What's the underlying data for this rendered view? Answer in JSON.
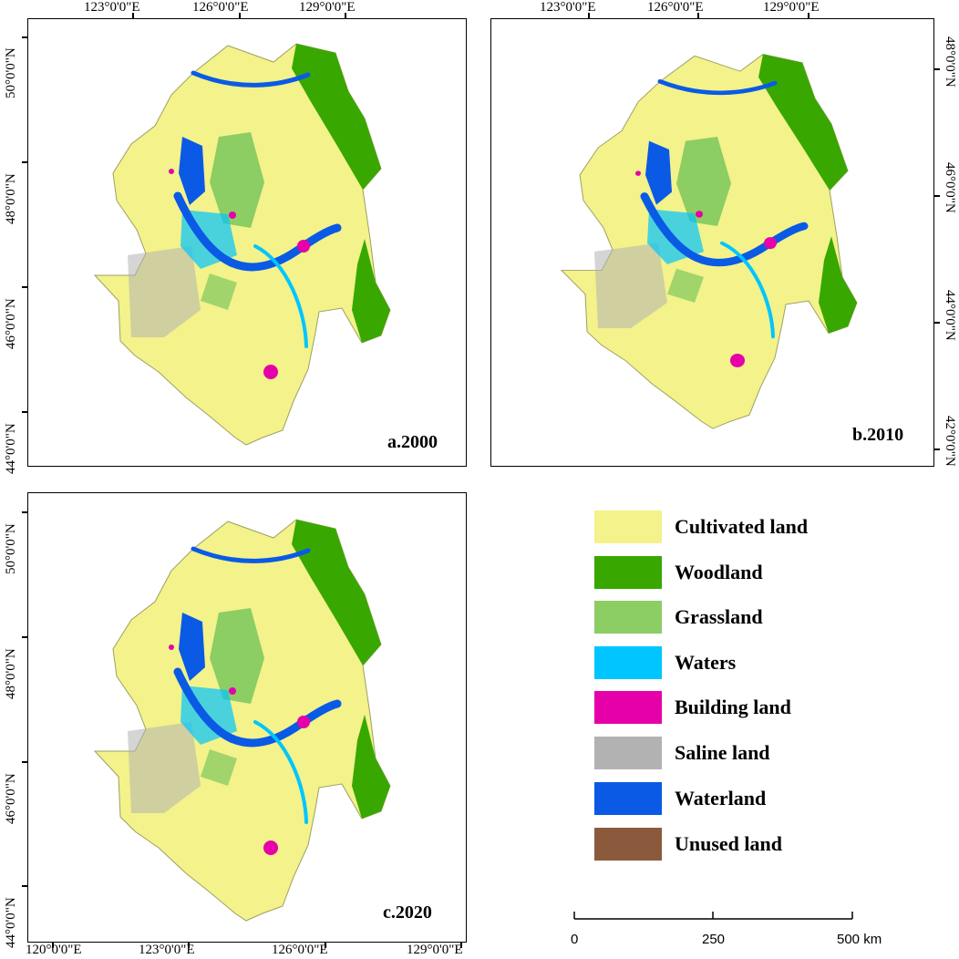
{
  "panels": [
    {
      "id": "a",
      "title": "a.2000",
      "top_labels": [
        "123°0'0\"E",
        "126°0'0\"E",
        "129°0'0\"E"
      ],
      "left_labels": [
        "50°0'0\"N",
        "48°0'0\"N",
        "46°0'0\"N",
        "44°0'0\"N"
      ]
    },
    {
      "id": "b",
      "title": "b.2010",
      "top_labels": [
        "123°0'0\"E",
        "126°0'0\"E",
        "129°0'0\"E"
      ],
      "right_labels": [
        "48°0'0\"N",
        "46°0'0\"N",
        "44°0'0\"N",
        "42°0'0\"N"
      ]
    },
    {
      "id": "c",
      "title": "c.2020",
      "left_labels": [
        "50°0'0\"N",
        "48°0'0\"N",
        "46°0'0\"N",
        "44°0'0\"N"
      ],
      "bottom_labels": [
        "120°0'0\"E",
        "123°0'0\"E",
        "126°0'0\"E",
        "129°0'0\"E"
      ]
    }
  ],
  "legend": [
    {
      "label": "Cultivated land",
      "color": "#f3f28b",
      "icon": "cultivated-land-swatch"
    },
    {
      "label": "Woodland",
      "color": "#38a800",
      "icon": "woodland-swatch"
    },
    {
      "label": "Grassland",
      "color": "#8ccd64",
      "icon": "grassland-swatch"
    },
    {
      "label": "Waters",
      "color": "#00c5ff",
      "icon": "waters-swatch"
    },
    {
      "label": "Building land",
      "color": "#e600a9",
      "icon": "building-land-swatch"
    },
    {
      "label": "Saline land",
      "color": "#b2b2b2",
      "icon": "saline-land-swatch"
    },
    {
      "label": "Waterland",
      "color": "#0a5ae6",
      "icon": "waterland-swatch"
    },
    {
      "label": "Unused land",
      "color": "#8b5a3c",
      "icon": "unused-land-swatch"
    }
  ],
  "scalebar": {
    "labels": [
      "0",
      "250",
      "500 km"
    ]
  }
}
